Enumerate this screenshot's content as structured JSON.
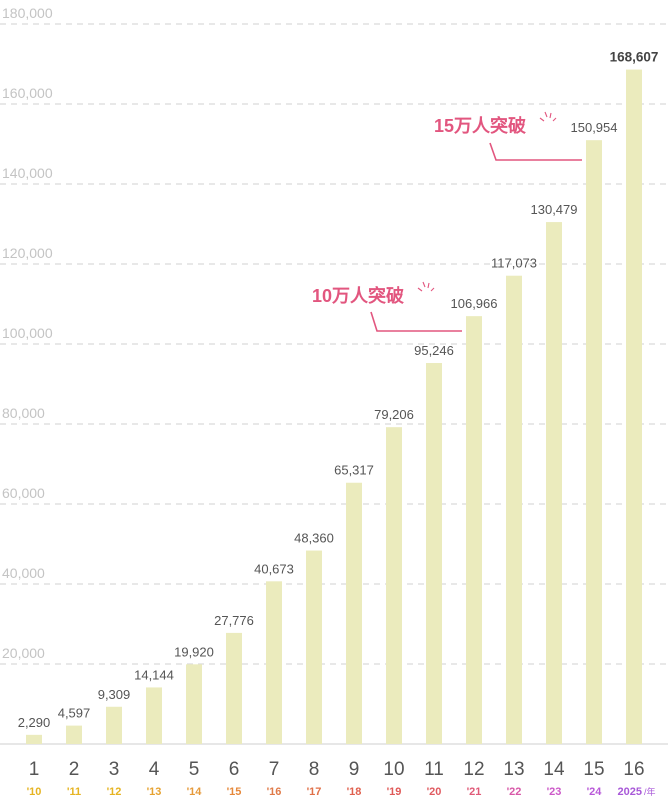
{
  "chart_data": {
    "type": "bar",
    "categories": [
      "1",
      "2",
      "3",
      "4",
      "5",
      "6",
      "7",
      "8",
      "9",
      "10",
      "11",
      "12",
      "13",
      "14",
      "15",
      "16"
    ],
    "year_labels": [
      "'10",
      "'11",
      "'12",
      "'13",
      "'14",
      "'15",
      "'16",
      "'17",
      "'18",
      "'19",
      "'20",
      "'21",
      "'22",
      "'23",
      "'24",
      "2025"
    ],
    "year_unit": "/年",
    "values": [
      2290,
      4597,
      9309,
      14144,
      19920,
      27776,
      40673,
      48360,
      65317,
      79206,
      95246,
      106966,
      117073,
      130479,
      150954,
      168607
    ],
    "value_labels": [
      "2,290",
      "4,597",
      "9,309",
      "14,144",
      "19,920",
      "27,776",
      "40,673",
      "48,360",
      "65,317",
      "79,206",
      "95,246",
      "106,966",
      "117,073",
      "130,479",
      "150,954",
      "168,607"
    ],
    "yticks": [
      20000,
      40000,
      60000,
      80000,
      100000,
      120000,
      140000,
      160000,
      180000
    ],
    "ytick_labels": [
      "20,000",
      "40,000",
      "60,000",
      "80,000",
      "100,000",
      "120,000",
      "140,000",
      "160,000",
      "180,000"
    ],
    "ylim": [
      0,
      180000
    ],
    "grid": true,
    "title": "",
    "xlabel": "",
    "ylabel": "",
    "year_colors": [
      "#e6b422",
      "#e6b422",
      "#e6b422",
      "#e6a230",
      "#e69a3a",
      "#e6883a",
      "#e07a48",
      "#e07048",
      "#e0604e",
      "#e05a58",
      "#e05a60",
      "#e05a78",
      "#d858a8",
      "#cc58c8",
      "#b858d8",
      "#a858d8"
    ],
    "colors": {
      "bar": "#ebebbd",
      "grid": "#d9d9d9",
      "annotation": "#e2567f",
      "tick_text": "#c4c4c4",
      "value_text": "#555555"
    },
    "annotations": [
      {
        "text": "10万人突破",
        "bar_index": 11
      },
      {
        "text": "15万人突破",
        "bar_index": 14
      }
    ]
  }
}
